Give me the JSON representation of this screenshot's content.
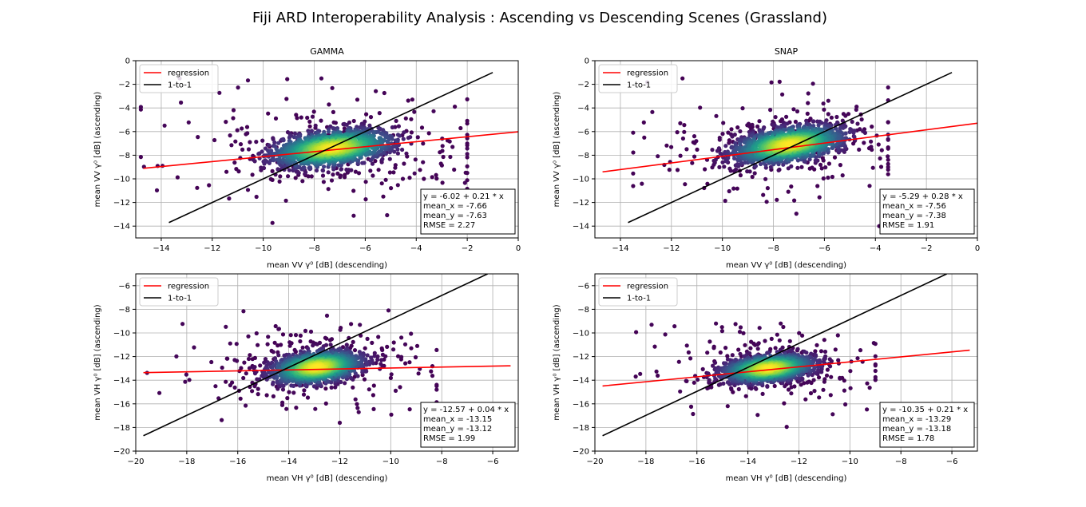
{
  "figure": {
    "title": "Fiji ARD Interoperability Analysis : Ascending vs Descending Scenes (Grassland)"
  },
  "legend_labels": {
    "regression": "regression",
    "one_to_one": "1-to-1"
  },
  "chart_data": [
    {
      "type": "scatter",
      "title": "GAMMA",
      "xlabel": "mean VV γ⁰ [dB] (descending)",
      "ylabel": "mean VV γ⁰ [dB] (ascending)",
      "xlim": [
        -15,
        0
      ],
      "ylim": [
        -15,
        0
      ],
      "xticks": [
        -14,
        -12,
        -10,
        -8,
        -6,
        -4,
        -2,
        0
      ],
      "yticks": [
        -14,
        -12,
        -10,
        -8,
        -6,
        -4,
        -2,
        0
      ],
      "grid": true,
      "legend_position": "top-left",
      "series": [
        {
          "name": "regression",
          "color": "#ff0000",
          "x": [
            -14.7,
            0
          ],
          "y": [
            -9.11,
            -6.02
          ]
        },
        {
          "name": "1-to-1",
          "color": "#000000",
          "x": [
            -13.7,
            -1.0
          ],
          "y": [
            -13.7,
            -1.0
          ]
        }
      ],
      "cloud": {
        "center": [
          -7.3,
          -7.4
        ],
        "sd": [
          1.2,
          0.8
        ],
        "rho": 0.35,
        "count": 1500,
        "outliers": 220,
        "spread": [
          4.2,
          3.2
        ],
        "x_range": [
          -14.8,
          -2.0
        ],
        "y_range": [
          -14.2,
          -1.5
        ]
      },
      "stats": [
        "y = -6.02 + 0.21 * x",
        "mean_x = -7.66",
        "mean_y = -7.63",
        "RMSE = 2.27"
      ]
    },
    {
      "type": "scatter",
      "title": "SNAP",
      "xlabel": "mean VV γ⁰ [dB] (descending)",
      "ylabel": "mean VV γ⁰ [dB] (ascending)",
      "xlim": [
        -15,
        0
      ],
      "ylim": [
        -15,
        0
      ],
      "xticks": [
        -14,
        -12,
        -10,
        -8,
        -6,
        -4,
        -2,
        0
      ],
      "yticks": [
        -14,
        -12,
        -10,
        -8,
        -6,
        -4,
        -2,
        0
      ],
      "grid": true,
      "legend_position": "top-left",
      "series": [
        {
          "name": "regression",
          "color": "#ff0000",
          "x": [
            -14.7,
            0
          ],
          "y": [
            -9.41,
            -5.29
          ]
        },
        {
          "name": "1-to-1",
          "color": "#000000",
          "x": [
            -13.7,
            -1.0
          ],
          "y": [
            -13.7,
            -1.0
          ]
        }
      ],
      "cloud": {
        "center": [
          -7.4,
          -7.1
        ],
        "sd": [
          1.1,
          0.8
        ],
        "rho": 0.4,
        "count": 1500,
        "outliers": 200,
        "spread": [
          3.6,
          3.0
        ],
        "x_range": [
          -13.5,
          -3.5
        ],
        "y_range": [
          -14.0,
          -1.5
        ]
      },
      "stats": [
        "y = -5.29 + 0.28 * x",
        "mean_x = -7.56",
        "mean_y = -7.38",
        "RMSE = 1.91"
      ]
    },
    {
      "type": "scatter",
      "title": "",
      "xlabel": "mean VH γ⁰ [dB] (descending)",
      "ylabel": "mean VH γ⁰ [dB] (ascending)",
      "xlim": [
        -20,
        -5
      ],
      "ylim": [
        -20,
        -5
      ],
      "xticks": [
        -20,
        -18,
        -16,
        -14,
        -12,
        -10,
        -8,
        -6
      ],
      "yticks": [
        -20,
        -18,
        -16,
        -14,
        -12,
        -10,
        -8,
        -6
      ],
      "grid": true,
      "legend_position": "top-left",
      "series": [
        {
          "name": "regression",
          "color": "#ff0000",
          "x": [
            -19.7,
            -5.3
          ],
          "y": [
            -13.36,
            -12.78
          ]
        },
        {
          "name": "1-to-1",
          "color": "#000000",
          "x": [
            -19.7,
            -6.2
          ],
          "y": [
            -18.7,
            -5.0
          ]
        }
      ],
      "cloud": {
        "center": [
          -12.9,
          -12.9
        ],
        "sd": [
          0.9,
          0.7
        ],
        "rho": 0.3,
        "count": 1500,
        "outliers": 200,
        "spread": [
          3.2,
          2.6
        ],
        "x_range": [
          -19.8,
          -8.2
        ],
        "y_range": [
          -19.5,
          -7.2
        ]
      },
      "stats": [
        "y = -12.57 + 0.04 * x",
        "mean_x = -13.15",
        "mean_y = -13.12",
        "RMSE = 1.99"
      ]
    },
    {
      "type": "scatter",
      "title": "",
      "xlabel": "mean VH γ⁰ [dB] (descending)",
      "ylabel": "mean VH γ⁰ [dB] (ascending)",
      "xlim": [
        -20,
        -5
      ],
      "ylim": [
        -20,
        -5
      ],
      "xticks": [
        -20,
        -18,
        -16,
        -14,
        -12,
        -10,
        -8,
        -6
      ],
      "yticks": [
        -20,
        -18,
        -16,
        -14,
        -12,
        -10,
        -8,
        -6
      ],
      "grid": true,
      "legend_position": "top-left",
      "series": [
        {
          "name": "regression",
          "color": "#ff0000",
          "x": [
            -19.7,
            -5.3
          ],
          "y": [
            -14.49,
            -11.46
          ]
        },
        {
          "name": "1-to-1",
          "color": "#000000",
          "x": [
            -19.7,
            -6.2
          ],
          "y": [
            -18.7,
            -5.0
          ]
        }
      ],
      "cloud": {
        "center": [
          -13.2,
          -13.0
        ],
        "sd": [
          0.9,
          0.6
        ],
        "rho": 0.3,
        "count": 1500,
        "outliers": 190,
        "spread": [
          3.0,
          2.4
        ],
        "x_range": [
          -18.4,
          -9.0
        ],
        "y_range": [
          -19.9,
          -9.2
        ]
      },
      "stats": [
        "y = -10.35 + 0.21 * x",
        "mean_x = -13.29",
        "mean_y = -13.18",
        "RMSE = 1.78"
      ]
    }
  ]
}
